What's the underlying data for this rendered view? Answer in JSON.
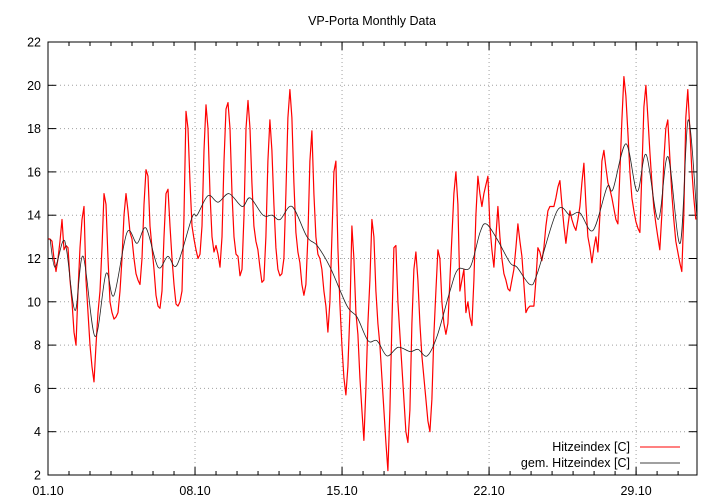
{
  "chart_data": {
    "type": "line",
    "title": "VP-Porta Monthly Data",
    "xlabel": "",
    "ylabel": "",
    "x_unit": "days since 01.10",
    "xlim": [
      0,
      30.9
    ],
    "ylim": [
      2,
      22
    ],
    "x_ticks": [
      {
        "value": 0,
        "label": "01.10"
      },
      {
        "value": 7,
        "label": "08.10"
      },
      {
        "value": 14,
        "label": "15.10"
      },
      {
        "value": 21,
        "label": "22.10"
      },
      {
        "value": 28,
        "label": "29.10"
      }
    ],
    "x_minor_tick_step_days": 1,
    "y_ticks": [
      "2",
      "4",
      "6",
      "8",
      "10",
      "12",
      "14",
      "16",
      "18",
      "20",
      "22"
    ],
    "grid": true,
    "legend_position": "bottom-right",
    "series": [
      {
        "name": "Hitzeindex [C]",
        "color": "#ff0000",
        "x_start": 0,
        "x_step": 0.0952,
        "values": [
          12.9,
          12.9,
          12.8,
          12.0,
          11.4,
          12.0,
          12.8,
          13.8,
          12.4,
          12.6,
          12.5,
          11.0,
          10.0,
          8.6,
          8.0,
          10.5,
          12.5,
          13.8,
          14.4,
          11.0,
          9.5,
          8.0,
          7.0,
          6.3,
          8.0,
          9.5,
          10.5,
          12.5,
          15.0,
          14.5,
          12.0,
          10.0,
          9.5,
          9.2,
          9.3,
          9.5,
          10.5,
          12.0,
          14.0,
          15.0,
          14.2,
          13.2,
          12.9,
          12.0,
          11.3,
          11.0,
          10.8,
          12.0,
          14.5,
          16.1,
          15.8,
          13.5,
          12.5,
          11.5,
          10.3,
          9.8,
          9.7,
          10.5,
          13.0,
          15.0,
          15.2,
          13.5,
          12.0,
          10.8,
          9.9,
          9.8,
          10.0,
          10.5,
          14.0,
          18.8,
          18.0,
          15.5,
          13.5,
          12.9,
          12.4,
          12.0,
          12.2,
          13.5,
          17.0,
          19.1,
          18.0,
          15.0,
          13.0,
          12.3,
          12.6,
          12.2,
          11.6,
          13.0,
          16.5,
          18.9,
          19.2,
          18.0,
          15.0,
          13.0,
          12.2,
          12.1,
          11.2,
          11.5,
          14.0,
          18.0,
          19.3,
          18.0,
          15.5,
          13.5,
          12.8,
          12.4,
          11.6,
          10.9,
          11.0,
          13.0,
          16.5,
          18.4,
          17.0,
          14.5,
          12.5,
          11.5,
          11.2,
          11.3,
          12.0,
          15.0,
          18.5,
          19.8,
          18.5,
          15.5,
          13.2,
          12.3,
          11.8,
          10.8,
          10.3,
          10.8,
          13.0,
          16.5,
          17.9,
          15.0,
          13.0,
          12.2,
          12.0,
          11.5,
          10.5,
          9.8,
          8.6,
          10.0,
          13.0,
          16.0,
          16.5,
          12.5,
          9.9,
          8.0,
          6.5,
          5.7,
          7.0,
          9.5,
          13.5,
          12.0,
          9.5,
          8.5,
          6.5,
          5.0,
          3.6,
          6.0,
          9.0,
          11.0,
          13.8,
          13.0,
          10.5,
          9.0,
          8.0,
          6.5,
          5.0,
          3.5,
          2.2,
          5.0,
          9.0,
          12.5,
          12.6,
          10.0,
          8.5,
          7.0,
          5.5,
          4.0,
          3.5,
          5.0,
          9.0,
          11.5,
          12.3,
          11.0,
          9.0,
          7.5,
          6.5,
          5.5,
          4.5,
          4.0,
          5.5,
          8.5,
          10.5,
          12.4,
          12.0,
          10.0,
          9.0,
          8.5,
          9.0,
          11.0,
          13.0,
          15.0,
          16.0,
          14.5,
          10.5,
          11.0,
          11.5,
          9.5,
          10.0,
          9.3,
          8.9,
          11.0,
          14.0,
          15.8,
          15.0,
          14.4,
          15.0,
          15.4,
          15.8,
          13.5,
          12.4,
          11.6,
          13.0,
          14.4,
          13.0,
          12.0,
          11.3,
          11.0,
          10.6,
          10.5,
          11.0,
          11.5,
          12.5,
          13.6,
          12.8,
          12.1,
          10.8,
          9.5,
          9.7,
          9.8,
          9.8,
          9.8,
          11.0,
          12.5,
          12.3,
          11.9,
          12.5,
          13.5,
          14.2,
          14.4,
          14.4,
          14.4,
          14.8,
          15.3,
          15.6,
          14.5,
          13.5,
          12.7,
          13.5,
          14.2,
          13.8,
          13.5,
          13.3,
          13.8,
          14.4,
          15.5,
          16.4,
          14.5,
          13.0,
          12.5,
          11.8,
          12.5,
          13.0,
          12.3,
          14.0,
          16.5,
          17.0,
          16.2,
          15.5,
          15.2,
          14.8,
          14.3,
          13.8,
          13.6,
          16.0,
          18.4,
          20.4,
          19.5,
          17.8,
          16.0,
          14.8,
          14.2,
          13.7,
          13.4,
          13.2,
          16.0,
          19.0,
          20.0,
          18.5,
          16.9,
          15.5,
          14.3,
          13.6,
          13.0,
          12.4,
          14.0,
          16.5,
          18.0,
          18.4,
          16.7,
          15.0,
          13.8,
          12.8,
          12.3,
          11.8,
          11.4,
          14.0,
          18.5,
          19.8,
          18.0,
          16.1,
          14.8,
          13.8
        ]
      },
      {
        "name": "gem. Hitzeindex [C]",
        "color": "#000000",
        "points": [
          [
            0.1,
            12.9
          ],
          [
            0.33,
            11.6
          ],
          [
            0.71,
            12.8
          ],
          [
            0.9,
            12.3
          ],
          [
            1.29,
            9.6
          ],
          [
            1.67,
            12.1
          ],
          [
            2.24,
            8.4
          ],
          [
            2.76,
            11.3
          ],
          [
            3.14,
            10.3
          ],
          [
            3.76,
            13.2
          ],
          [
            4.24,
            12.7
          ],
          [
            4.67,
            13.4
          ],
          [
            5.24,
            11.6
          ],
          [
            5.71,
            12.1
          ],
          [
            6.14,
            11.7
          ],
          [
            6.86,
            13.9
          ],
          [
            7.1,
            14.0
          ],
          [
            7.62,
            14.9
          ],
          [
            8.1,
            14.6
          ],
          [
            8.62,
            15.0
          ],
          [
            9.24,
            14.4
          ],
          [
            9.62,
            14.8
          ],
          [
            10.24,
            14.0
          ],
          [
            10.67,
            14.0
          ],
          [
            11.05,
            13.8
          ],
          [
            11.62,
            14.4
          ],
          [
            12.33,
            13.0
          ],
          [
            12.81,
            12.6
          ],
          [
            13.43,
            11.6
          ],
          [
            14.24,
            9.8
          ],
          [
            14.71,
            9.3
          ],
          [
            15.24,
            8.2
          ],
          [
            15.67,
            8.2
          ],
          [
            16.14,
            7.5
          ],
          [
            16.67,
            7.9
          ],
          [
            17.24,
            7.7
          ],
          [
            17.62,
            7.8
          ],
          [
            18.05,
            7.5
          ],
          [
            18.52,
            8.4
          ],
          [
            19.14,
            10.5
          ],
          [
            19.52,
            11.5
          ],
          [
            20.1,
            11.6
          ],
          [
            20.57,
            13.2
          ],
          [
            20.86,
            13.6
          ],
          [
            21.38,
            12.9
          ],
          [
            22.0,
            11.8
          ],
          [
            22.33,
            11.6
          ],
          [
            22.95,
            10.8
          ],
          [
            23.29,
            11.3
          ],
          [
            24.24,
            14.2
          ],
          [
            24.86,
            14.0
          ],
          [
            25.33,
            14.1
          ],
          [
            25.95,
            13.3
          ],
          [
            26.62,
            15.3
          ],
          [
            26.9,
            15.2
          ],
          [
            27.52,
            17.3
          ],
          [
            28.05,
            15.1
          ],
          [
            28.48,
            16.8
          ],
          [
            29.05,
            13.8
          ],
          [
            29.52,
            16.7
          ],
          [
            30.1,
            12.7
          ],
          [
            30.48,
            18.4
          ],
          [
            30.9,
            13.9
          ]
        ]
      }
    ]
  }
}
